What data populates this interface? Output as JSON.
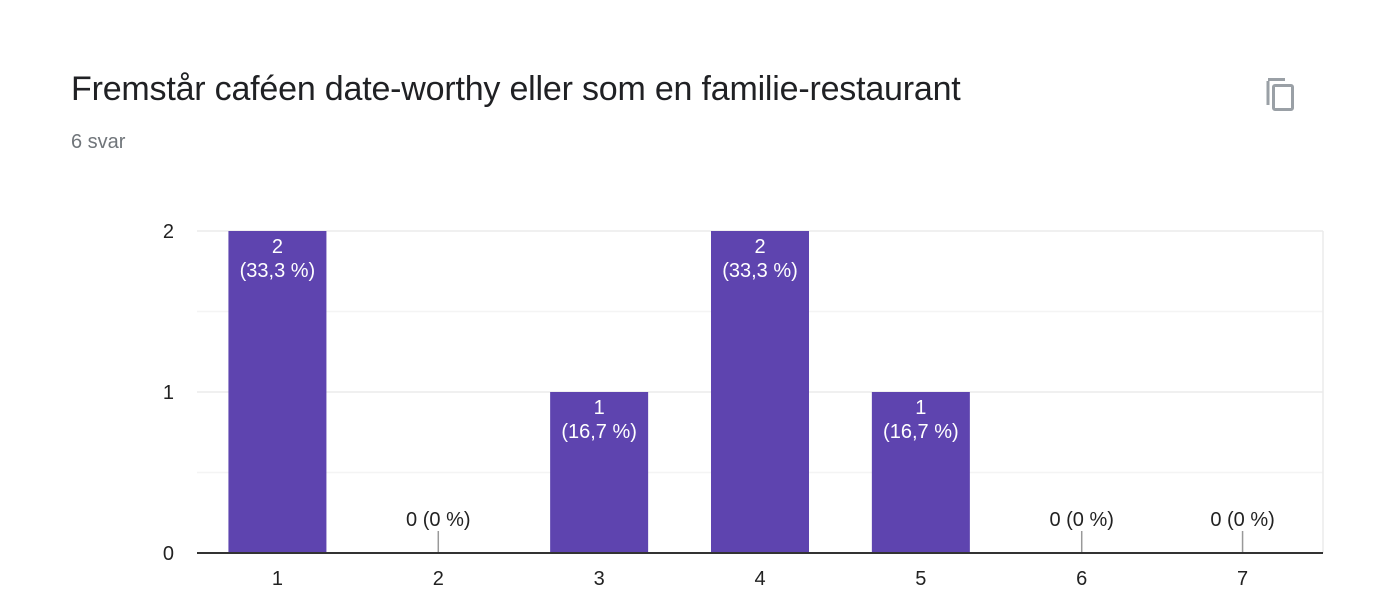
{
  "card": {
    "title": "Fremstår caféen date-worthy eller som en familie-restaurant",
    "subtitle": "6 svar",
    "copy_icon": "copy-icon"
  },
  "colors": {
    "bar": "#5e44af",
    "title": "#202124",
    "subtitle": "#70757a",
    "grid": "#ebebeb",
    "axis": "#333333",
    "icon": "#9aa0a6"
  },
  "chart_data": {
    "type": "bar",
    "categories": [
      "1",
      "2",
      "3",
      "4",
      "5",
      "6",
      "7"
    ],
    "values": [
      2,
      0,
      1,
      2,
      1,
      0,
      0
    ],
    "data_labels": [
      [
        "2",
        "(33,3 %)"
      ],
      [
        "0 (0 %)"
      ],
      [
        "1",
        "(16,7 %)"
      ],
      [
        "2",
        "(33,3 %)"
      ],
      [
        "1",
        "(16,7 %)"
      ],
      [
        "0 (0 %)"
      ],
      [
        "0 (0 %)"
      ]
    ],
    "y_ticks": [
      "0",
      "1",
      "2"
    ],
    "ylim": [
      0,
      2
    ],
    "grid": true,
    "title": "",
    "xlabel": "",
    "ylabel": ""
  }
}
